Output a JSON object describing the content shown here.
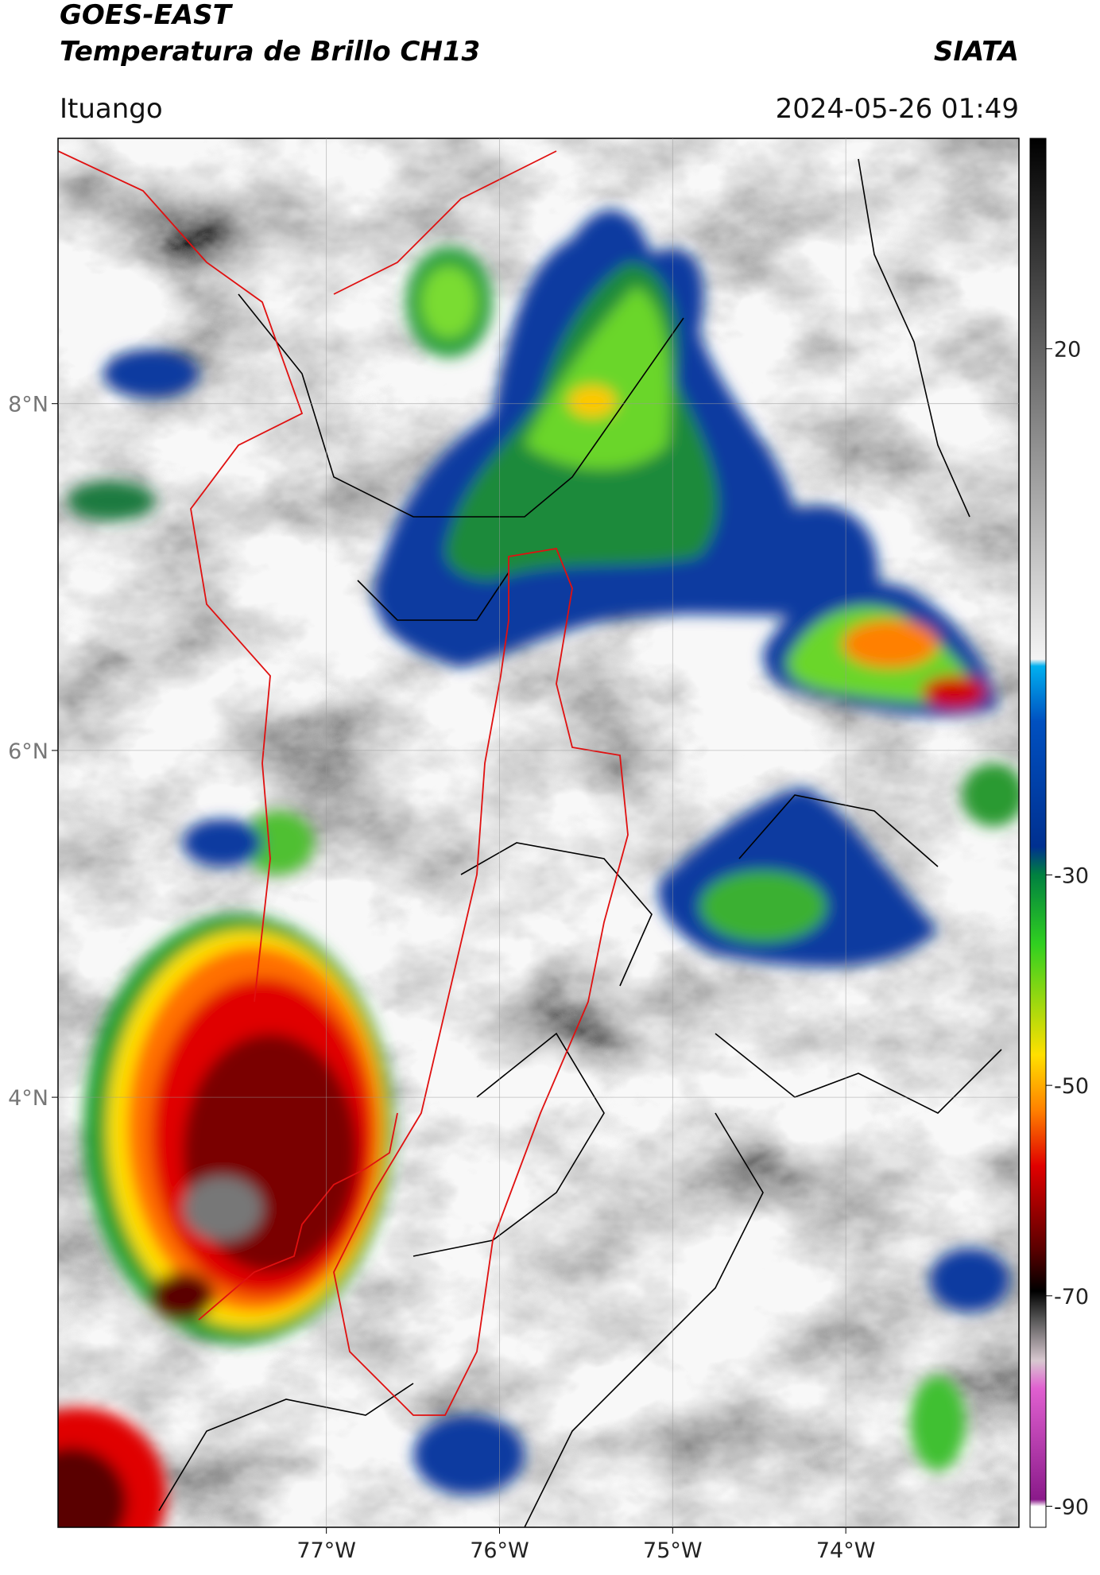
{
  "header": {
    "title": "GOES-EAST",
    "subtitle": "Temperatura de Brillo CH13",
    "source": "SIATA",
    "location": "Ituango",
    "datetime": "2024-05-26 01:49"
  },
  "map": {
    "xlim": [
      -78.55,
      -73.0
    ],
    "ylim": [
      1.52,
      9.53
    ],
    "xticks": [
      {
        "value": -77,
        "label": "77°W"
      },
      {
        "value": -76,
        "label": "76°W"
      },
      {
        "value": -75,
        "label": "75°W"
      },
      {
        "value": -74,
        "label": "74°W"
      }
    ],
    "yticks": [
      {
        "value": 8,
        "label": "8°N"
      },
      {
        "value": 6,
        "label": "6°N"
      },
      {
        "value": 4,
        "label": "4°N"
      }
    ],
    "grid": true
  },
  "colorbar": {
    "lim": [
      -92,
      40
    ],
    "ticks": [
      20,
      -30,
      -50,
      -70,
      -90
    ]
  }
}
